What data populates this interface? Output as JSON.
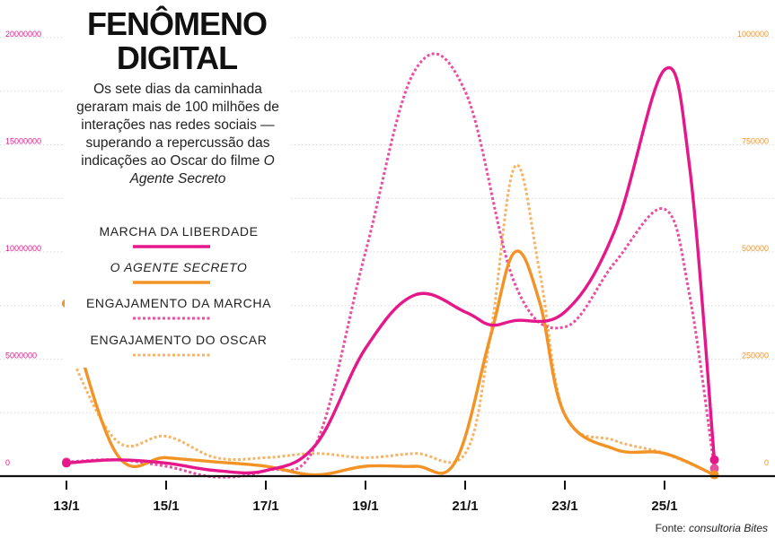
{
  "header": {
    "title_line1": "FENÔMENO",
    "title_line2": "DIGITAL",
    "subtitle_part1": "Os sete dias da caminhada geraram mais de 100 milhões de interações nas redes sociais — superando a repercussão das indicações ao Oscar do",
    "subtitle_part2": "filme",
    "subtitle_part3": "O Agente Secreto"
  },
  "source": {
    "prefix": "Fonte:",
    "name": "consultoria Bites"
  },
  "colors": {
    "magenta": "#e5178b",
    "orange": "#f39325",
    "magenta_light": "#e94fa0",
    "orange_light": "#f6b469",
    "axis": "#111111"
  },
  "chart_data": {
    "type": "line",
    "x_ticks": [
      "13/1",
      "15/1",
      "17/1",
      "19/1",
      "21/1",
      "23/1",
      "25/1"
    ],
    "left_axis": {
      "ticks": [
        "0",
        "5000000",
        "10000000",
        "15000000",
        "20000000"
      ],
      "ylim": [
        0,
        20000000
      ],
      "color": "#e5178b"
    },
    "right_axis": {
      "ticks": [
        "0",
        "250000",
        "500000",
        "750000",
        "1000000"
      ],
      "ylim": [
        0,
        1000000
      ],
      "color": "#f39325"
    },
    "legend_position": "left",
    "series": [
      {
        "name": "MARCHA DA LIBERDADE",
        "axis": "left",
        "style": "solid",
        "color": "#e5178b",
        "x": [
          13,
          14,
          15,
          16,
          17,
          18,
          19,
          20,
          21,
          21.5,
          22,
          23,
          24,
          25,
          25.5,
          26
        ],
        "y": [
          150000,
          300000,
          150000,
          -200000,
          -200000,
          1000000,
          5500000,
          8000000,
          7200000,
          6600000,
          6800000,
          7200000,
          11000000,
          18500000,
          14000000,
          300000
        ],
        "end_markers": true
      },
      {
        "name": "O AGENTE SECRETO",
        "axis": "right",
        "style": "solid",
        "color": "#f39325",
        "x": [
          13,
          14,
          15,
          16,
          17,
          18,
          19,
          20,
          20.8,
          21.5,
          22,
          22.5,
          23,
          24,
          25,
          26
        ],
        "y": [
          380000,
          30000,
          20000,
          10000,
          0,
          -20000,
          0,
          0,
          10000,
          300000,
          500000,
          380000,
          120000,
          40000,
          30000,
          -20000
        ],
        "end_markers": true
      },
      {
        "name": "ENGAJAMENTO DA MARCHA",
        "axis": "left",
        "style": "dotted",
        "color": "#e94fa0",
        "x": [
          13,
          14,
          15,
          16,
          17,
          18,
          19,
          20,
          21,
          22,
          23,
          24,
          25,
          25.5,
          26
        ],
        "y": [
          200000,
          300000,
          0,
          -500000,
          -200000,
          1000000,
          10000000,
          18500000,
          17500000,
          8500000,
          6500000,
          9500000,
          12000000,
          8000000,
          -100000
        ],
        "end_markers": true
      },
      {
        "name": "ENGAJAMENTO DO OSCAR",
        "axis": "right",
        "style": "dotted",
        "color": "#f6b469",
        "x": [
          13,
          14,
          15,
          16,
          17,
          18,
          19,
          20,
          21,
          21.5,
          22,
          22.5,
          23,
          24,
          25,
          26
        ],
        "y": [
          280000,
          60000,
          70000,
          20000,
          20000,
          30000,
          20000,
          30000,
          30000,
          300000,
          700000,
          450000,
          120000,
          60000,
          30000,
          -20000
        ],
        "end_markers": false
      }
    ]
  }
}
